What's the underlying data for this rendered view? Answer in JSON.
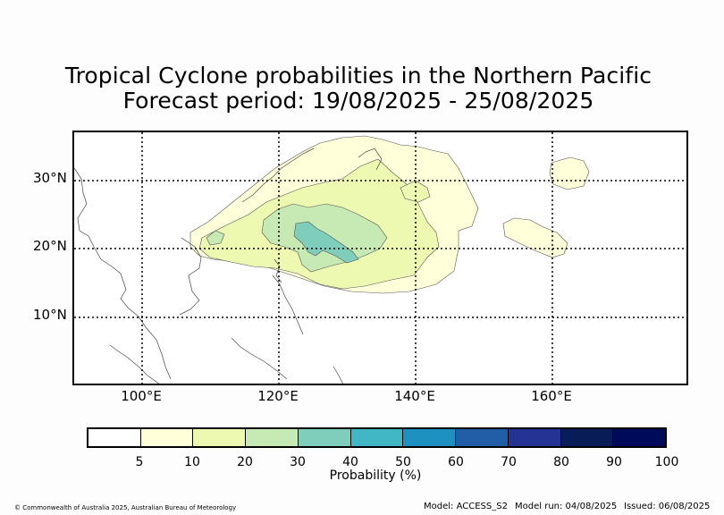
{
  "title": {
    "line1": "Tropical Cyclone probabilities in the Northern Pacific",
    "line2": "Forecast period: 19/08/2025 - 25/08/2025"
  },
  "map": {
    "lat_labels": [
      "30°N",
      "20°N",
      "10°N"
    ],
    "lon_labels": [
      "100°E",
      "120°E",
      "140°E",
      "160°E"
    ],
    "region": "Northern Pacific",
    "extent": {
      "lon": [
        90,
        180
      ],
      "lat": [
        0,
        37
      ]
    },
    "gridlines": "dotted",
    "probability_fields": [
      {
        "level": "5-10%",
        "color": "#ffffd9"
      },
      {
        "level": "10-20%",
        "color": "#edf8b1"
      },
      {
        "level": "20-30%",
        "color": "#c7e9b4"
      },
      {
        "level": "30-40%",
        "color": "#7fcdbb"
      }
    ]
  },
  "colorbar": {
    "ticks": [
      "5",
      "10",
      "20",
      "30",
      "40",
      "50",
      "60",
      "70",
      "80",
      "90",
      "100"
    ],
    "colors": [
      "#ffffff",
      "#ffffd9",
      "#edf8b1",
      "#c7e9b4",
      "#7fcdbb",
      "#41b6c4",
      "#1d91c0",
      "#225ea8",
      "#253494",
      "#081d58",
      "#000a5a"
    ],
    "label": "Probability (%)"
  },
  "footer": {
    "copyright": "© Commonwealth of Australia 2025, Australian Bureau of Meteorology",
    "model": "Model: ACCESS_S2",
    "model_run": "Model run: 04/08/2025",
    "issued": "Issued: 06/08/2025"
  }
}
